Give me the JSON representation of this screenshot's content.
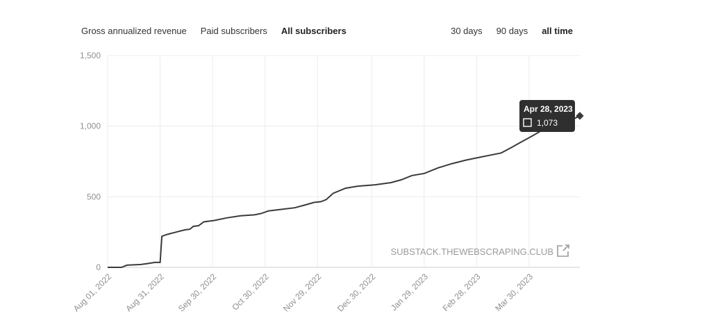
{
  "metric_tabs": [
    {
      "label": "Gross annualized revenue",
      "active": false
    },
    {
      "label": "Paid subscribers",
      "active": false
    },
    {
      "label": "All subscribers",
      "active": true
    }
  ],
  "range_tabs": [
    {
      "label": "30 days",
      "active": false
    },
    {
      "label": "90 days",
      "active": false
    },
    {
      "label": "all time",
      "active": true
    }
  ],
  "watermark": {
    "text": "SUBSTACK.THEWEBSCRAPING.CLUB",
    "icon": "external-link-icon"
  },
  "tooltip": {
    "date": "Apr 28, 2023",
    "value": "1,073"
  },
  "colors": {
    "line": "#3a3a3a",
    "grid": "#ececec",
    "axis": "#cccccc",
    "tooltip_bg": "#2f2f2f"
  },
  "chart_data": {
    "type": "line",
    "title": "",
    "xlabel": "",
    "ylabel": "",
    "ylim": [
      0,
      1500
    ],
    "xlim": [
      "2022-08-01",
      "2023-04-28"
    ],
    "grid": true,
    "y_ticks": [
      0,
      500,
      1000,
      1500
    ],
    "y_tick_labels": [
      "0",
      "500",
      "1,000",
      "1,500"
    ],
    "x_ticks": [
      "2022-08-01",
      "2022-08-31",
      "2022-09-30",
      "2022-10-30",
      "2022-11-29",
      "2022-12-30",
      "2023-01-29",
      "2023-02-28",
      "2023-03-30"
    ],
    "x_tick_labels": [
      "Aug 01, 2022",
      "Aug 31, 2022",
      "Sep 30, 2022",
      "Oct 30, 2022",
      "Nov 29, 2022",
      "Dec 30, 2022",
      "Jan 29, 2023",
      "Feb 28, 2023",
      "Mar 30, 2023"
    ],
    "series": [
      {
        "x": [
          "2022-08-01",
          "2022-08-09",
          "2022-08-12",
          "2022-08-20",
          "2022-08-24",
          "2022-08-28",
          "2022-08-31",
          "2022-09-01",
          "2022-09-04",
          "2022-09-14",
          "2022-09-17",
          "2022-09-19",
          "2022-09-22",
          "2022-09-25",
          "2022-10-01",
          "2022-10-08",
          "2022-10-16",
          "2022-10-24",
          "2022-10-28",
          "2022-11-01",
          "2022-11-08",
          "2022-11-16",
          "2022-11-22",
          "2022-11-27",
          "2022-12-01",
          "2022-12-04",
          "2022-12-08",
          "2022-12-15",
          "2022-12-22",
          "2023-01-01",
          "2023-01-10",
          "2023-01-16",
          "2023-01-22",
          "2023-01-29",
          "2023-02-06",
          "2023-02-14",
          "2023-02-22",
          "2023-03-02",
          "2023-03-08",
          "2023-03-14",
          "2023-03-20",
          "2023-03-25",
          "2023-03-31",
          "2023-04-07",
          "2023-04-15",
          "2023-04-21",
          "2023-04-28"
        ],
        "y": [
          0,
          0,
          15,
          20,
          27,
          35,
          35,
          220,
          233,
          265,
          270,
          290,
          295,
          322,
          332,
          350,
          365,
          372,
          382,
          400,
          410,
          422,
          442,
          460,
          465,
          480,
          525,
          560,
          575,
          585,
          600,
          620,
          650,
          665,
          705,
          735,
          760,
          780,
          795,
          810,
          850,
          885,
          925,
          975,
          1000,
          1030,
          1073
        ]
      }
    ],
    "annotations": [
      {
        "x": "2023-04-28",
        "y": 1073,
        "label": "Apr 28, 2023",
        "value_label": "1,073"
      }
    ]
  }
}
